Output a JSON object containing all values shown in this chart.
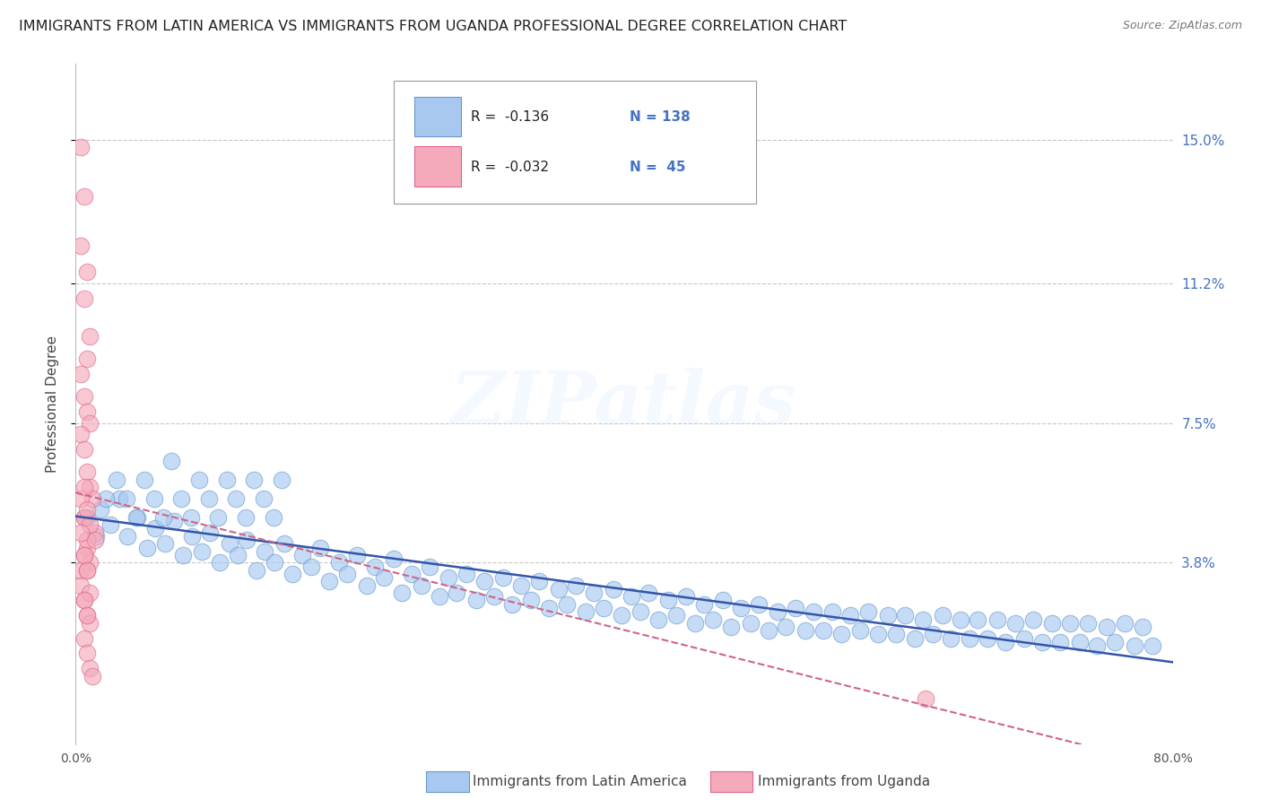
{
  "title": "IMMIGRANTS FROM LATIN AMERICA VS IMMIGRANTS FROM UGANDA PROFESSIONAL DEGREE CORRELATION CHART",
  "source": "Source: ZipAtlas.com",
  "ylabel": "Professional Degree",
  "xlim": [
    0.0,
    0.8
  ],
  "ylim": [
    -0.01,
    0.17
  ],
  "yticks": [
    0.038,
    0.075,
    0.112,
    0.15
  ],
  "ytick_labels": [
    "3.8%",
    "7.5%",
    "11.2%",
    "15.0%"
  ],
  "xticks": [
    0.0,
    0.1,
    0.2,
    0.3,
    0.4,
    0.5,
    0.6,
    0.7,
    0.8
  ],
  "xtick_labels": [
    "0.0%",
    "",
    "",
    "",
    "",
    "",
    "",
    "",
    "80.0%"
  ],
  "grid_color": "#c8c8c8",
  "watermark": "ZIPatlas",
  "blue_color": "#a8c8f0",
  "blue_edge": "#6699cc",
  "blue_trend": "#3355aa",
  "pink_color": "#f4aabb",
  "pink_edge": "#dd6688",
  "pink_trend": "#cc6688",
  "blue_label": "Immigrants from Latin America",
  "pink_label": "Immigrants from Uganda",
  "blue_R": "-0.136",
  "blue_N": "138",
  "pink_R": "-0.032",
  "pink_N": "45",
  "background_color": "#ffffff",
  "title_color": "#222222",
  "axis_label_color": "#444444",
  "right_tick_color": "#4472c4",
  "title_fontsize": 11.5,
  "axis_fontsize": 11,
  "blue_x": [
    0.018,
    0.025,
    0.032,
    0.038,
    0.045,
    0.052,
    0.058,
    0.065,
    0.072,
    0.078,
    0.085,
    0.092,
    0.098,
    0.105,
    0.112,
    0.118,
    0.125,
    0.132,
    0.138,
    0.145,
    0.152,
    0.158,
    0.165,
    0.172,
    0.178,
    0.185,
    0.192,
    0.198,
    0.205,
    0.212,
    0.218,
    0.225,
    0.232,
    0.238,
    0.245,
    0.252,
    0.258,
    0.265,
    0.272,
    0.278,
    0.285,
    0.292,
    0.298,
    0.305,
    0.312,
    0.318,
    0.325,
    0.332,
    0.338,
    0.345,
    0.352,
    0.358,
    0.365,
    0.372,
    0.378,
    0.385,
    0.392,
    0.398,
    0.405,
    0.412,
    0.418,
    0.425,
    0.432,
    0.438,
    0.445,
    0.452,
    0.458,
    0.465,
    0.472,
    0.478,
    0.485,
    0.492,
    0.498,
    0.505,
    0.512,
    0.518,
    0.525,
    0.532,
    0.538,
    0.545,
    0.552,
    0.558,
    0.565,
    0.572,
    0.578,
    0.585,
    0.592,
    0.598,
    0.605,
    0.612,
    0.618,
    0.625,
    0.632,
    0.638,
    0.645,
    0.652,
    0.658,
    0.665,
    0.672,
    0.678,
    0.685,
    0.692,
    0.698,
    0.705,
    0.712,
    0.718,
    0.725,
    0.732,
    0.738,
    0.745,
    0.752,
    0.758,
    0.765,
    0.772,
    0.778,
    0.785,
    0.008,
    0.015,
    0.022,
    0.03,
    0.037,
    0.044,
    0.05,
    0.057,
    0.064,
    0.07,
    0.077,
    0.084,
    0.09,
    0.097,
    0.104,
    0.11,
    0.117,
    0.124,
    0.13,
    0.137,
    0.144,
    0.15
  ],
  "blue_y": [
    0.052,
    0.048,
    0.055,
    0.045,
    0.05,
    0.042,
    0.047,
    0.043,
    0.049,
    0.04,
    0.045,
    0.041,
    0.046,
    0.038,
    0.043,
    0.04,
    0.044,
    0.036,
    0.041,
    0.038,
    0.043,
    0.035,
    0.04,
    0.037,
    0.042,
    0.033,
    0.038,
    0.035,
    0.04,
    0.032,
    0.037,
    0.034,
    0.039,
    0.03,
    0.035,
    0.032,
    0.037,
    0.029,
    0.034,
    0.03,
    0.035,
    0.028,
    0.033,
    0.029,
    0.034,
    0.027,
    0.032,
    0.028,
    0.033,
    0.026,
    0.031,
    0.027,
    0.032,
    0.025,
    0.03,
    0.026,
    0.031,
    0.024,
    0.029,
    0.025,
    0.03,
    0.023,
    0.028,
    0.024,
    0.029,
    0.022,
    0.027,
    0.023,
    0.028,
    0.021,
    0.026,
    0.022,
    0.027,
    0.02,
    0.025,
    0.021,
    0.026,
    0.02,
    0.025,
    0.02,
    0.025,
    0.019,
    0.024,
    0.02,
    0.025,
    0.019,
    0.024,
    0.019,
    0.024,
    0.018,
    0.023,
    0.019,
    0.024,
    0.018,
    0.023,
    0.018,
    0.023,
    0.018,
    0.023,
    0.017,
    0.022,
    0.018,
    0.023,
    0.017,
    0.022,
    0.017,
    0.022,
    0.017,
    0.022,
    0.016,
    0.021,
    0.017,
    0.022,
    0.016,
    0.021,
    0.016,
    0.05,
    0.045,
    0.055,
    0.06,
    0.055,
    0.05,
    0.06,
    0.055,
    0.05,
    0.065,
    0.055,
    0.05,
    0.06,
    0.055,
    0.05,
    0.06,
    0.055,
    0.05,
    0.06,
    0.055,
    0.05,
    0.06
  ],
  "pink_x": [
    0.004,
    0.006,
    0.004,
    0.008,
    0.006,
    0.01,
    0.008,
    0.004,
    0.006,
    0.008,
    0.01,
    0.004,
    0.006,
    0.008,
    0.01,
    0.012,
    0.006,
    0.014,
    0.008,
    0.01,
    0.004,
    0.006,
    0.008,
    0.004,
    0.006,
    0.008,
    0.01,
    0.014,
    0.006,
    0.008,
    0.004,
    0.006,
    0.008,
    0.01,
    0.006,
    0.008,
    0.01,
    0.012,
    0.004,
    0.006,
    0.008,
    0.01,
    0.006,
    0.62,
    0.008
  ],
  "pink_y": [
    0.148,
    0.135,
    0.122,
    0.115,
    0.108,
    0.098,
    0.092,
    0.088,
    0.082,
    0.078,
    0.075,
    0.072,
    0.068,
    0.062,
    0.058,
    0.055,
    0.05,
    0.046,
    0.042,
    0.038,
    0.055,
    0.05,
    0.044,
    0.036,
    0.058,
    0.052,
    0.048,
    0.044,
    0.04,
    0.036,
    0.032,
    0.028,
    0.024,
    0.022,
    0.018,
    0.014,
    0.01,
    0.008,
    0.046,
    0.04,
    0.036,
    0.03,
    0.028,
    0.002,
    0.024
  ]
}
